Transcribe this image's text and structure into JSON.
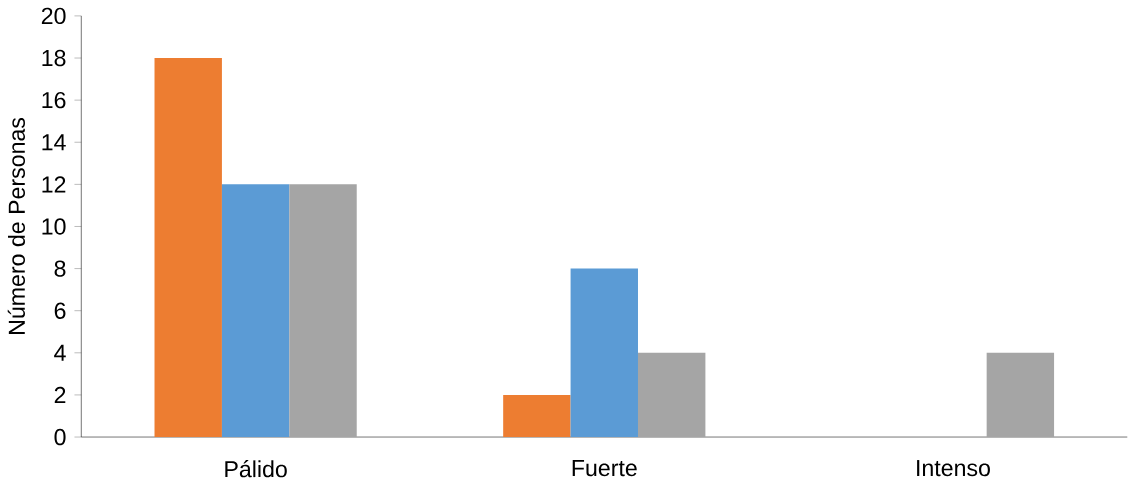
{
  "chart_data": {
    "type": "bar",
    "ylabel": "Número de Personas",
    "categories": [
      "Pálido",
      "Fuerte",
      "Intenso"
    ],
    "series": [
      {
        "color": "#ed7d31",
        "values": [
          18,
          2,
          0
        ]
      },
      {
        "color": "#5b9bd5",
        "values": [
          12,
          8,
          0
        ]
      },
      {
        "color": "#a5a5a5",
        "values": [
          12,
          4,
          4
        ]
      }
    ],
    "ylim": [
      0,
      20
    ],
    "yticks": [
      0,
      2,
      4,
      6,
      8,
      10,
      12,
      14,
      16,
      18,
      20
    ]
  }
}
